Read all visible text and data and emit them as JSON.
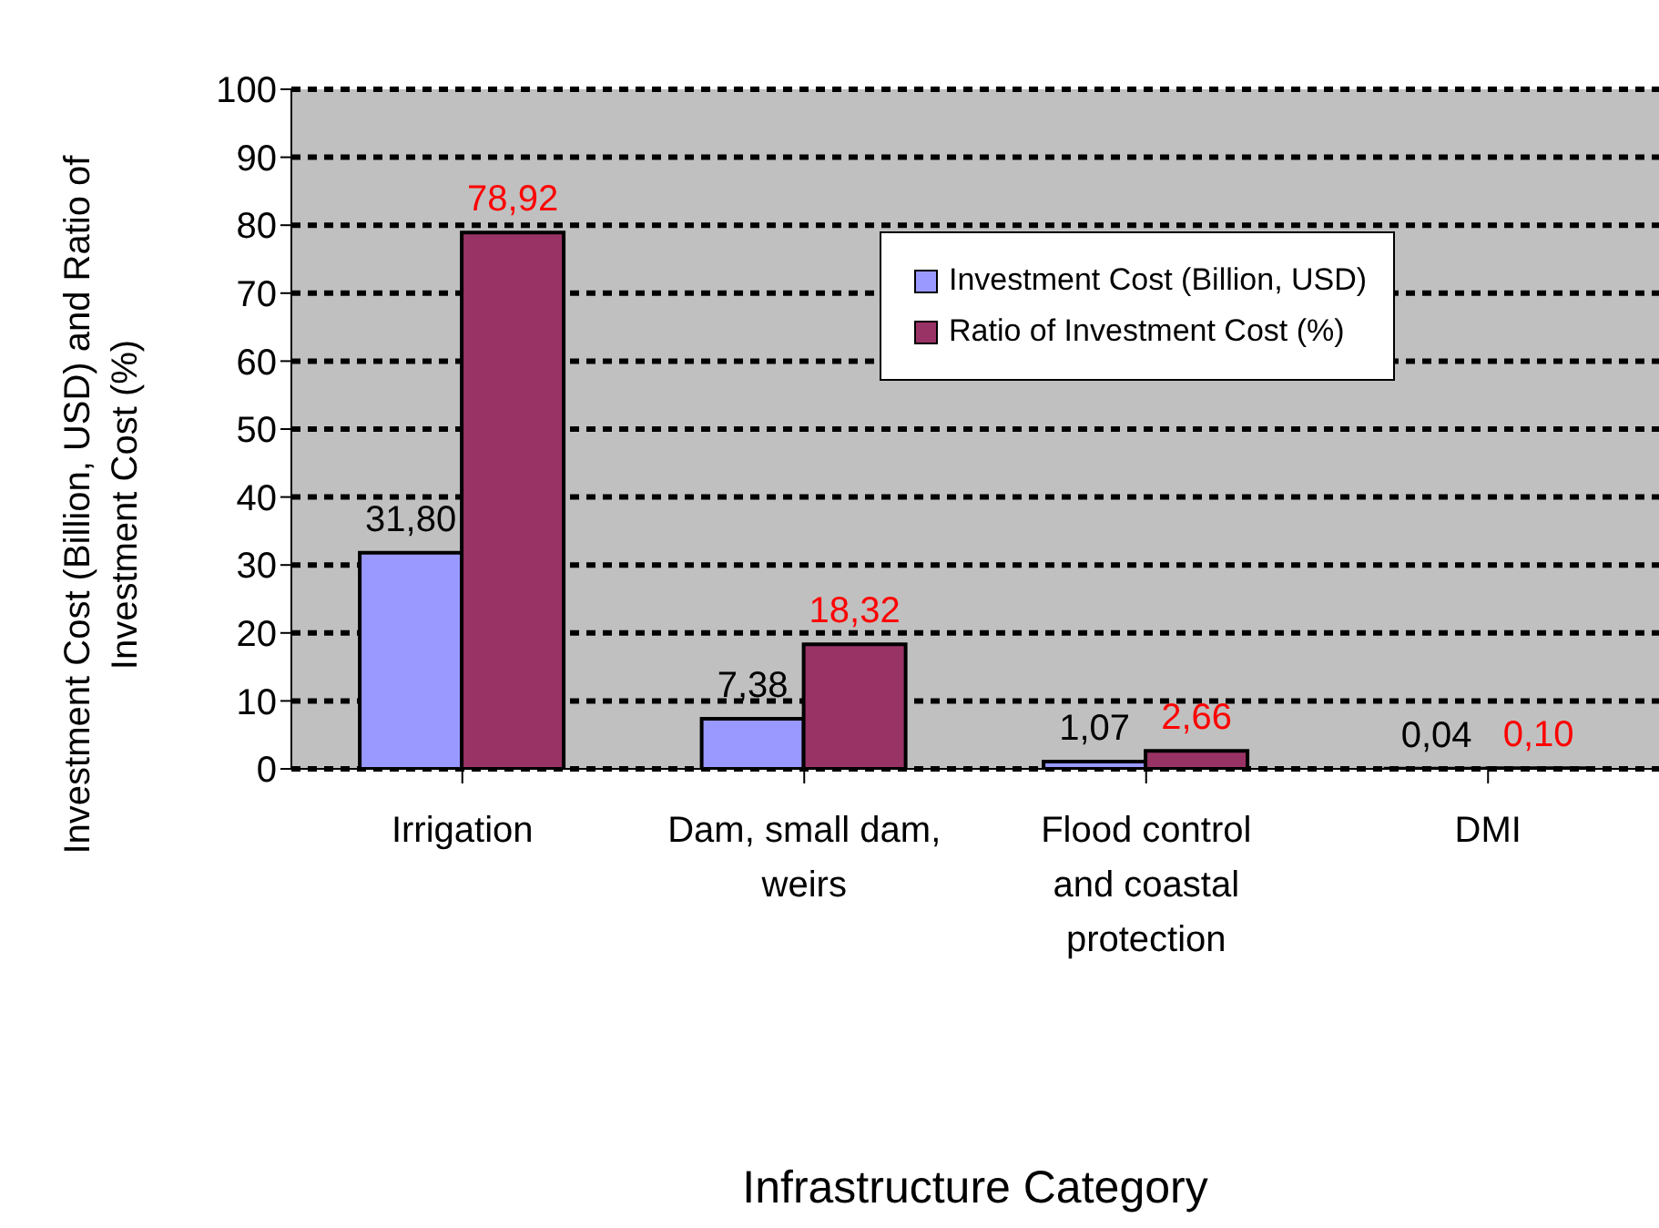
{
  "chart_data": {
    "type": "bar",
    "xlabel": "Infrastructure Category",
    "ylabel": "Investment Cost (Billion, USD) and Ratio of Investment Cost (%)",
    "categories": [
      "Irrigation",
      "Dam, small dam, weirs",
      "Flood control and coastal protection",
      "DMI"
    ],
    "series": [
      {
        "name": "Investment Cost (Billion, USD)",
        "color": "#9999ff",
        "values": [
          31.8,
          7.38,
          1.07,
          0.04
        ],
        "value_labels": [
          "31,80",
          "7,38",
          "1,07",
          "0,04"
        ]
      },
      {
        "name": "Ratio of Investment Cost (%)",
        "color": "#993366",
        "values": [
          78.92,
          18.32,
          2.66,
          0.1
        ],
        "value_labels": [
          "78,92",
          "18,32",
          "2,66",
          "0,10"
        ]
      }
    ],
    "ylim": [
      0,
      100
    ],
    "yticks": [
      0,
      10,
      20,
      30,
      40,
      50,
      60,
      70,
      80,
      90,
      100
    ],
    "grid": "y",
    "legend": "top right"
  }
}
